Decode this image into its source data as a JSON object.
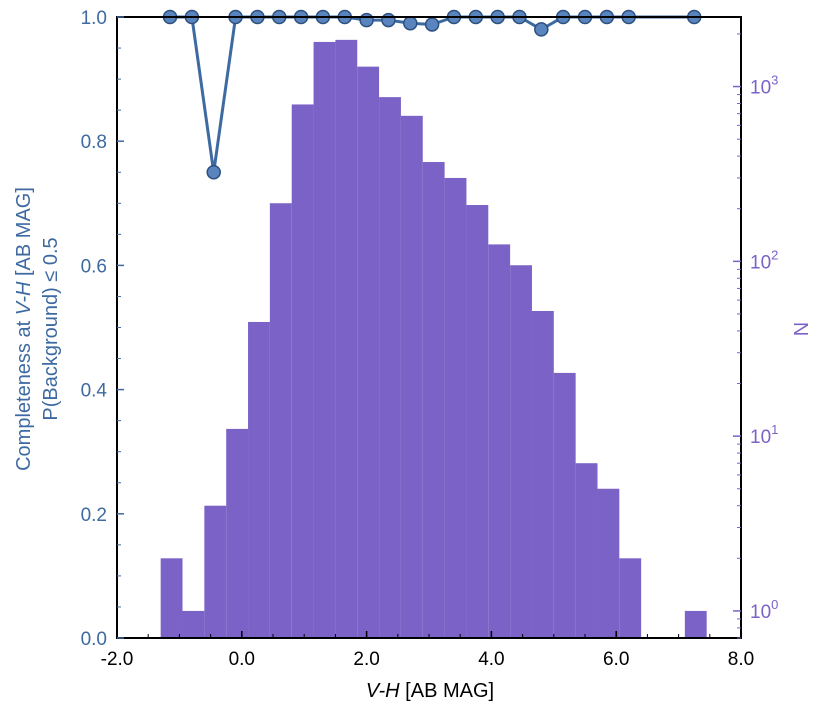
{
  "chart_data": {
    "type": "bar",
    "xlabel_italic": "V-H",
    "xlabel_rest": " [AB MAG]",
    "ylabel_left_line1_prefix": "Completeness at ",
    "ylabel_left_line1_italic": "V-H",
    "ylabel_left_line1_suffix": " [AB MAG]",
    "ylabel_left_line2": "P(Background)  ≤ 0.5",
    "ylabel_right": "N",
    "xlim": [
      -2.0,
      8.0
    ],
    "ylim_left": [
      0.0,
      1.0
    ],
    "ylim_right_log": [
      0.7,
      2500
    ],
    "x_ticks": [
      -2.0,
      0.0,
      2.0,
      4.0,
      6.0,
      8.0
    ],
    "x_tick_labels": [
      "-2.0",
      "0.0",
      "2.0",
      "4.0",
      "6.0",
      "8.0"
    ],
    "y_left_ticks": [
      0.0,
      0.2,
      0.4,
      0.6,
      0.8,
      1.0
    ],
    "y_left_tick_labels": [
      "0.0",
      "0.2",
      "0.4",
      "0.6",
      "0.8",
      "1.0"
    ],
    "y_right_ticks": [
      1,
      10,
      100,
      1000
    ],
    "y_right_tick_labels": [
      {
        "base": "10",
        "exp": "0"
      },
      {
        "base": "10",
        "exp": "1"
      },
      {
        "base": "10",
        "exp": "2"
      },
      {
        "base": "10",
        "exp": "3"
      }
    ],
    "histogram": {
      "name": "N",
      "color": "#7b62c6",
      "bin_edges": [
        -1.3,
        -0.95,
        -0.6,
        -0.25,
        0.1,
        0.45,
        0.8,
        1.15,
        1.5,
        1.85,
        2.2,
        2.55,
        2.9,
        3.25,
        3.6,
        3.95,
        4.3,
        4.65,
        5.0,
        5.35,
        5.7,
        6.05,
        6.4,
        6.75,
        7.1,
        7.45
      ],
      "counts": [
        2,
        1,
        4,
        11,
        45,
        215,
        790,
        1800,
        1850,
        1300,
        870,
        680,
        370,
        300,
        210,
        125,
        95,
        52,
        23,
        7,
        5,
        2,
        0,
        0,
        1
      ]
    },
    "completeness": {
      "name": "Completeness",
      "color": "#3d6aa1",
      "x": [
        -1.15,
        -0.8,
        -0.45,
        -0.1,
        0.25,
        0.6,
        0.95,
        1.3,
        1.65,
        2.0,
        2.35,
        2.7,
        3.05,
        3.4,
        3.75,
        4.1,
        4.45,
        4.8,
        5.15,
        5.5,
        5.85,
        6.2,
        7.25
      ],
      "y": [
        1.0,
        1.0,
        0.75,
        1.0,
        1.0,
        1.0,
        1.0,
        1.0,
        1.0,
        0.995,
        0.995,
        0.99,
        0.988,
        1.0,
        1.0,
        1.0,
        1.0,
        0.98,
        1.0,
        1.0,
        1.0,
        1.0,
        1.0
      ]
    },
    "axis_color_left": "#3d6aa1",
    "axis_color_right": "#7b62c6",
    "grid": false
  }
}
